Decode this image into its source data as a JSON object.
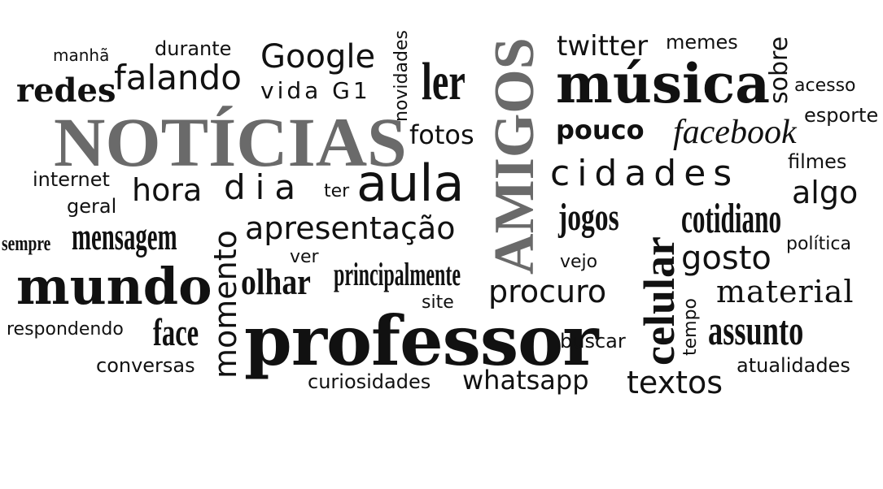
{
  "cloud": {
    "noticias": "NOTÍCIAS",
    "amigos": "AMIGOS",
    "professor": "professor",
    "musica": "música",
    "mundo": "mundo",
    "aula": "aula",
    "celular": "celular",
    "cidades": "cidades",
    "dia": "dia",
    "redes": "redes",
    "falando": "falando",
    "google": "Google",
    "vida_g1": "vida G1",
    "ler": "ler",
    "twitter": "twitter",
    "memes": "memes",
    "sobre": "sobre",
    "acesso": "acesso",
    "esporte": "esporte",
    "manha": "manhã",
    "durante": "durante",
    "novidades": "novidades",
    "fotos": "fotos",
    "pouco": "pouco",
    "facebook": "facebook",
    "filmes": "filmes",
    "internet": "internet",
    "hora": "hora",
    "ter": "ter",
    "algo": "algo",
    "geral": "geral",
    "jogos": "jogos",
    "cotidiano": "cotidiano",
    "sempre": "sempre",
    "mensagem": "mensagem",
    "apresentacao": "apresentação",
    "politica": "política",
    "momento": "momento",
    "gosto": "gosto",
    "ver": "ver",
    "olhar": "olhar",
    "principalmente": "principalmente",
    "vejo": "vejo",
    "procuro": "procuro",
    "material": "material",
    "site": "site",
    "tempo": "tempo",
    "respondendo": "respondendo",
    "face": "face",
    "assunto": "assunto",
    "buscar": "buscar",
    "conversas": "conversas",
    "atualidades": "atualidades",
    "curiosidades": "curiosidades",
    "whatsapp": "whatsapp",
    "textos": "textos"
  }
}
